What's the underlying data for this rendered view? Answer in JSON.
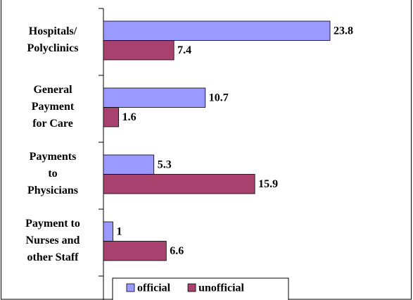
{
  "chart_data": {
    "type": "bar",
    "orientation": "horizontal",
    "categories": [
      [
        "Hospitals/",
        "Polyclinics"
      ],
      [
        "General",
        "Payment",
        "for Care"
      ],
      [
        "Payments",
        "to",
        "Physicians"
      ],
      [
        "Payment to",
        "Nurses and",
        "other Staff"
      ]
    ],
    "series": [
      {
        "name": "official",
        "color": "#9999ff",
        "values": [
          23.8,
          10.7,
          5.3,
          1
        ]
      },
      {
        "name": "unofficial",
        "color": "#a9416f",
        "values": [
          7.4,
          1.6,
          15.9,
          6.6
        ]
      }
    ],
    "xlim": [
      0,
      32
    ],
    "legend": "bottom"
  }
}
